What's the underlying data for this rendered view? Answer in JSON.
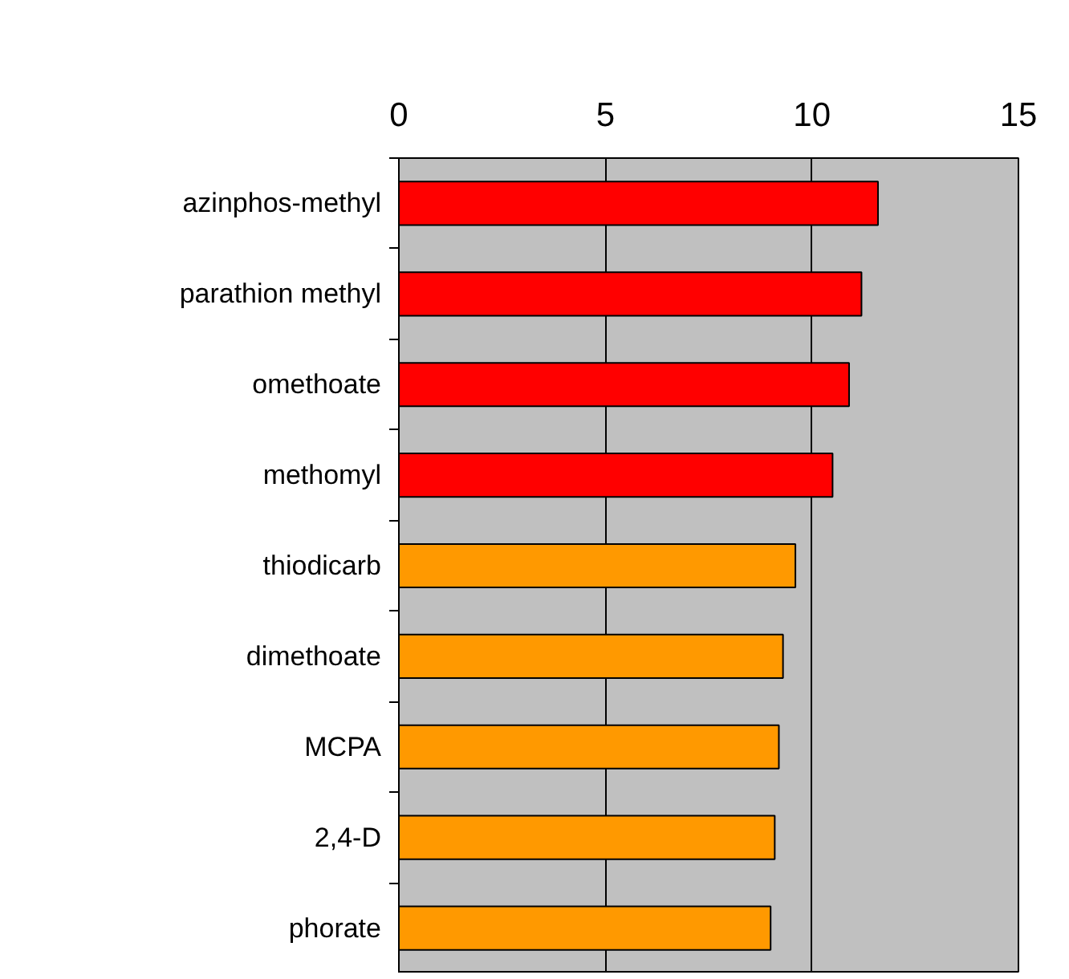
{
  "chart_data": {
    "type": "bar",
    "orientation": "horizontal",
    "categories": [
      "azinphos-methyl",
      "parathion methyl",
      "omethoate",
      "methomyl",
      "thiodicarb",
      "dimethoate",
      "MCPA",
      "2,4-D",
      "phorate"
    ],
    "values": [
      11.6,
      11.2,
      10.9,
      10.5,
      9.6,
      9.3,
      9.2,
      9.1,
      9.0
    ],
    "colors": [
      "#ff0000",
      "#ff0000",
      "#ff0000",
      "#ff0000",
      "#ff9900",
      "#ff9900",
      "#ff9900",
      "#ff9900",
      "#ff9900"
    ],
    "xlim": [
      0,
      15
    ],
    "xticks": [
      0,
      5,
      10,
      15
    ],
    "grid": "x"
  }
}
